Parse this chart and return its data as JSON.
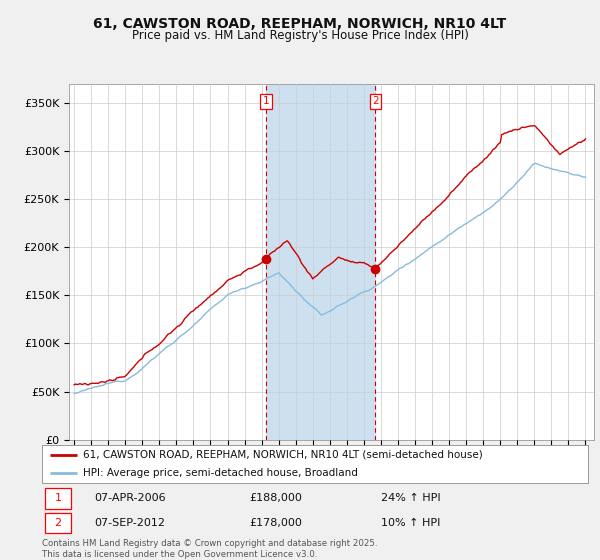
{
  "title_line1": "61, CAWSTON ROAD, REEPHAM, NORWICH, NR10 4LT",
  "title_line2": "Price paid vs. HM Land Registry's House Price Index (HPI)",
  "ylim": [
    0,
    370000
  ],
  "yticks": [
    0,
    50000,
    100000,
    150000,
    200000,
    250000,
    300000,
    350000
  ],
  "ytick_labels": [
    "£0",
    "£50K",
    "£100K",
    "£150K",
    "£200K",
    "£250K",
    "£300K",
    "£350K"
  ],
  "background_color": "#f0f0f0",
  "plot_background": "#ffffff",
  "grid_color": "#cccccc",
  "sale1_date": 2006.27,
  "sale1_price": 188000,
  "sale1_label": "1",
  "sale1_text": "07-APR-2006",
  "sale1_pct": "24% ↑ HPI",
  "sale2_date": 2012.68,
  "sale2_price": 178000,
  "sale2_label": "2",
  "sale2_text": "07-SEP-2012",
  "sale2_pct": "10% ↑ HPI",
  "legend_line1": "61, CAWSTON ROAD, REEPHAM, NORWICH, NR10 4LT (semi-detached house)",
  "legend_line2": "HPI: Average price, semi-detached house, Broadland",
  "footnote": "Contains HM Land Registry data © Crown copyright and database right 2025.\nThis data is licensed under the Open Government Licence v3.0.",
  "price_color": "#cc0000",
  "hpi_color": "#88bbdd",
  "vline_color": "#cc0000",
  "span_color": "#cce0f0",
  "xlim_left": 1994.7,
  "xlim_right": 2025.5
}
